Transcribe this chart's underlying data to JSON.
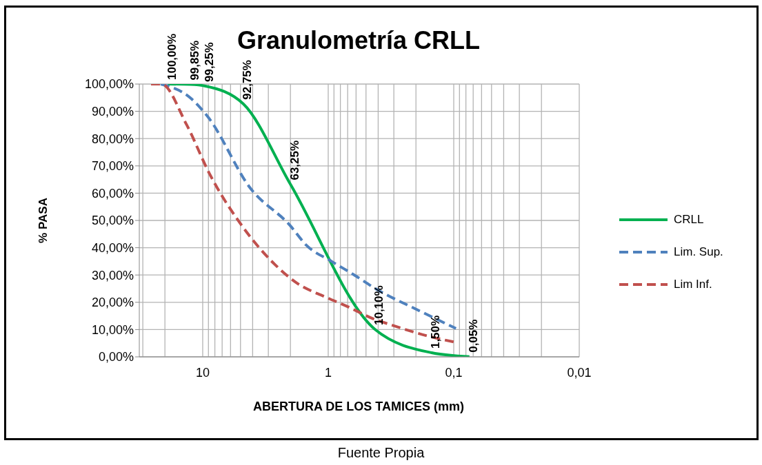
{
  "chart_data": {
    "type": "line",
    "title": "Granulometría CRLL",
    "xlabel": "ABERTURA DE LOS TAMICES (mm)",
    "ylabel": "% PASA",
    "annotations": [
      "Fuente Propia"
    ],
    "log": "x",
    "xlim": [
      32,
      0.01
    ],
    "xticks": [
      {
        "value": 10,
        "label": "10"
      },
      {
        "value": 1,
        "label": "1"
      },
      {
        "value": 0.1,
        "label": "0,1"
      },
      {
        "value": 0.01,
        "label": "0,01"
      }
    ],
    "ylim": [
      0,
      100
    ],
    "yticks": [
      {
        "value": 0,
        "label": "0,00%"
      },
      {
        "value": 10,
        "label": "10,00%"
      },
      {
        "value": 20,
        "label": "20,00%"
      },
      {
        "value": 30,
        "label": "30,00%"
      },
      {
        "value": 40,
        "label": "40,00%"
      },
      {
        "value": 50,
        "label": "50,00%"
      },
      {
        "value": 60,
        "label": "60,00%"
      },
      {
        "value": 70,
        "label": "70,00%"
      },
      {
        "value": 80,
        "label": "80,00%"
      },
      {
        "value": 90,
        "label": "90,00%"
      },
      {
        "value": 100,
        "label": "100,00%"
      }
    ],
    "grid": true,
    "legend": "right",
    "marker": "none",
    "series": [
      {
        "name": "CRLL",
        "color": "#00b050",
        "line_style": "solid",
        "x": [
          19,
          12.5,
          9.5,
          4.75,
          2,
          0.425,
          0.15,
          0.075
        ],
        "values": [
          100,
          99.85,
          99.25,
          92.75,
          63.25,
          10.1,
          1.5,
          0.05
        ],
        "value_labels": [
          "100,00%",
          "99,85%",
          "99,25%",
          "92,75%",
          "63,25%",
          "10,10%",
          "1,50%",
          "0,05%"
        ]
      },
      {
        "name": "Lim. Sup.",
        "color": "#4f81bd",
        "line_style": "dashed",
        "x": [
          21.6,
          12.6,
          9.1,
          4.2,
          2,
          1.5,
          0.94,
          0.62,
          0.42,
          0.19,
          0.096
        ],
        "values": [
          100,
          95,
          88,
          62,
          48,
          41,
          35,
          30,
          25,
          17,
          10.4
        ]
      },
      {
        "name": "Lim Inf.",
        "color": "#c0504d",
        "line_style": "dashed",
        "x": [
          25.8,
          21.4,
          13.4,
          8.8,
          4.86,
          2.68,
          1.77,
          1.06,
          0.7,
          0.44,
          0.3,
          0.166,
          0.096
        ],
        "values": [
          100,
          100,
          85,
          67,
          48,
          34,
          27,
          22,
          18.4,
          14,
          11.4,
          7.8,
          5.3
        ]
      }
    ]
  }
}
